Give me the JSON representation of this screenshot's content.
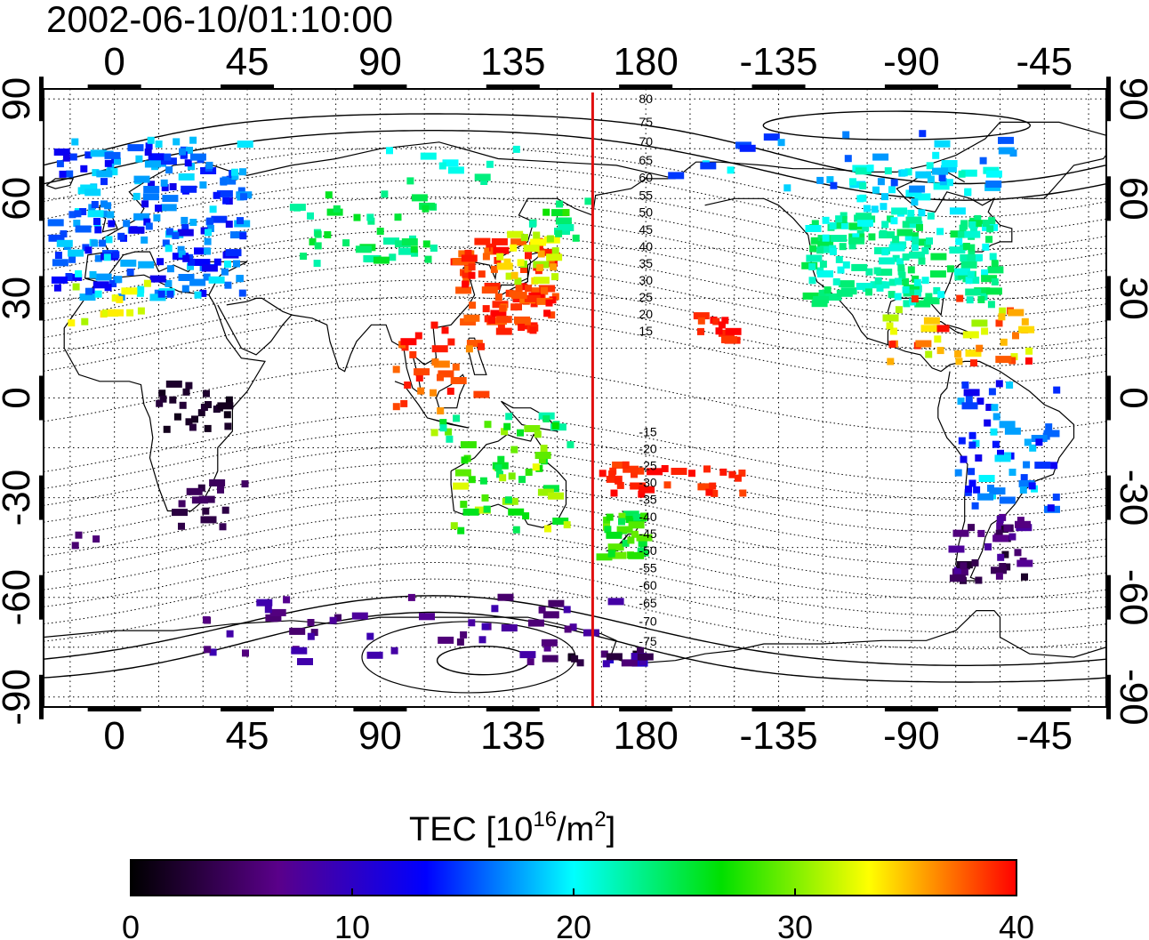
{
  "title": "2002-06-10/01:10:00",
  "map": {
    "lon_ticks": [
      "0",
      "45",
      "90",
      "135",
      "180",
      "-135",
      "-90",
      "-45"
    ],
    "lon_tick_values": [
      0,
      45,
      90,
      135,
      180,
      225,
      270,
      315
    ],
    "lat_ticks": [
      "90",
      "60",
      "30",
      "0",
      "-30",
      "-60",
      "-90"
    ],
    "lat_tick_values": [
      90,
      60,
      30,
      0,
      -30,
      -60,
      -90
    ],
    "lon_range": [
      -24,
      336
    ],
    "lat_range": [
      -93,
      93
    ],
    "meridian_marker_lon": 162,
    "meridian_marker_color": "#e01010",
    "contour_labels_north": [
      "80",
      "75",
      "70",
      "65",
      "60",
      "55",
      "50",
      "45",
      "40",
      "35",
      "30",
      "25",
      "20",
      "15"
    ],
    "contour_labels_south": [
      "-15",
      "-20",
      "-25",
      "-30",
      "-35",
      "-40",
      "-45",
      "-50",
      "-55",
      "-60",
      "-65",
      "-70",
      "-75"
    ]
  },
  "colorbar": {
    "title_prefix": "TEC  [10",
    "title_sup1": "16",
    "title_mid": "/m",
    "title_sup2": "2",
    "title_suffix": "]",
    "ticks": [
      "0",
      "10",
      "20",
      "30",
      "40"
    ],
    "tick_values": [
      0,
      10,
      20,
      30,
      40
    ],
    "range": [
      0,
      40
    ],
    "stops": [
      "#000000",
      "#5a008a",
      "#0000ff",
      "#00ffff",
      "#00e000",
      "#ffff00",
      "#ff0000"
    ]
  },
  "tec_regions": [
    {
      "lon": [
        -20,
        45
      ],
      "lat": [
        30,
        78
      ],
      "tec": [
        12,
        20
      ],
      "n": 220
    },
    {
      "lon": [
        -15,
        12
      ],
      "lat": [
        22,
        35
      ],
      "tec": [
        30,
        34
      ],
      "n": 12
    },
    {
      "lon": [
        15,
        40
      ],
      "lat": [
        -10,
        5
      ],
      "tec": [
        1,
        3
      ],
      "n": 24
    },
    {
      "lon": [
        20,
        45
      ],
      "lat": [
        -40,
        -25
      ],
      "tec": [
        3,
        5
      ],
      "n": 14
    },
    {
      "lon": [
        -15,
        -5
      ],
      "lat": [
        -45,
        -40
      ],
      "tec": [
        5,
        6
      ],
      "n": 3
    },
    {
      "lon": [
        60,
        110
      ],
      "lat": [
        40,
        62
      ],
      "tec": [
        22,
        26
      ],
      "n": 40
    },
    {
      "lon": [
        90,
        145
      ],
      "lat": [
        65,
        75
      ],
      "tec": [
        20,
        24
      ],
      "n": 10
    },
    {
      "lon": [
        115,
        150
      ],
      "lat": [
        20,
        48
      ],
      "tec": [
        37,
        40
      ],
      "n": 90
    },
    {
      "lon": [
        130,
        150
      ],
      "lat": [
        35,
        50
      ],
      "tec": [
        30,
        36
      ],
      "n": 25
    },
    {
      "lon": [
        140,
        162
      ],
      "lat": [
        45,
        60
      ],
      "tec": [
        22,
        28
      ],
      "n": 12
    },
    {
      "lon": [
        95,
        125
      ],
      "lat": [
        -5,
        22
      ],
      "tec": [
        36,
        40
      ],
      "n": 30
    },
    {
      "lon": [
        105,
        155
      ],
      "lat": [
        -15,
        -5
      ],
      "tec": [
        22,
        33
      ],
      "n": 20
    },
    {
      "lon": [
        115,
        155
      ],
      "lat": [
        -40,
        -15
      ],
      "tec": [
        24,
        33
      ],
      "n": 40
    },
    {
      "lon": [
        165,
        180
      ],
      "lat": [
        -48,
        -35
      ],
      "tec": [
        24,
        30
      ],
      "n": 30
    },
    {
      "lon": [
        165,
        215
      ],
      "lat": [
        -30,
        -20
      ],
      "tec": [
        38,
        40
      ],
      "n": 30
    },
    {
      "lon": [
        195,
        210
      ],
      "lat": [
        15,
        25
      ],
      "tec": [
        38,
        40
      ],
      "n": 12
    },
    {
      "lon": [
        235,
        300
      ],
      "lat": [
        28,
        55
      ],
      "tec": [
        20,
        25
      ],
      "n": 180
    },
    {
      "lon": [
        250,
        300
      ],
      "lat": [
        55,
        70
      ],
      "tec": [
        18,
        22
      ],
      "n": 40
    },
    {
      "lon": [
        190,
        310
      ],
      "lat": [
        62,
        80
      ],
      "tec": [
        14,
        20
      ],
      "n": 30
    },
    {
      "lon": [
        260,
        310
      ],
      "lat": [
        10,
        30
      ],
      "tec": [
        30,
        40
      ],
      "n": 40
    },
    {
      "lon": [
        285,
        320
      ],
      "lat": [
        -35,
        5
      ],
      "tec": [
        12,
        20
      ],
      "n": 60
    },
    {
      "lon": [
        285,
        310
      ],
      "lat": [
        -55,
        -35
      ],
      "tec": [
        2,
        8
      ],
      "n": 40
    },
    {
      "lon": [
        30,
        170
      ],
      "lat": [
        -80,
        -60
      ],
      "tec": [
        5,
        9
      ],
      "n": 50
    },
    {
      "lon": [
        140,
        180
      ],
      "lat": [
        -80,
        -76
      ],
      "tec": [
        1,
        12
      ],
      "n": 16
    }
  ]
}
